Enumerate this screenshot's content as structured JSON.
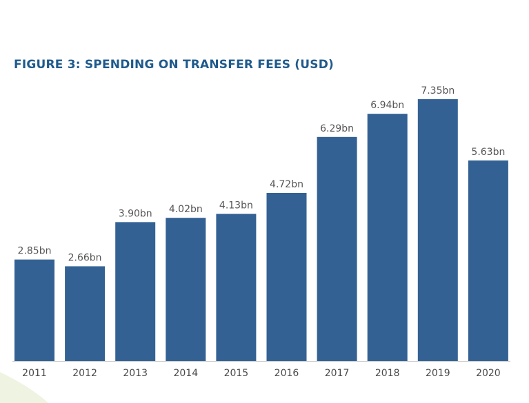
{
  "colors": {
    "bar": "#336194",
    "title": "#1f5a8c",
    "axis": "#c8c8c8",
    "corner_decoration": "#eef3e2"
  },
  "chart_data": {
    "type": "bar",
    "title": "FIGURE 3: SPENDING ON TRANSFER FEES (USD)",
    "xlabel": "",
    "ylabel": "",
    "categories": [
      "2011",
      "2012",
      "2013",
      "2014",
      "2015",
      "2016",
      "2017",
      "2018",
      "2019",
      "2020"
    ],
    "values": [
      2.85,
      2.66,
      3.9,
      4.02,
      4.13,
      4.72,
      6.29,
      6.94,
      7.35,
      5.63
    ],
    "data_labels": [
      "2.85bn",
      "2.66bn",
      "3.90bn",
      "4.02bn",
      "4.13bn",
      "4.72bn",
      "6.29bn",
      "6.94bn",
      "7.35bn",
      "5.63bn"
    ],
    "ylim": [
      0,
      7.35
    ],
    "grid": false,
    "legend": "none"
  }
}
